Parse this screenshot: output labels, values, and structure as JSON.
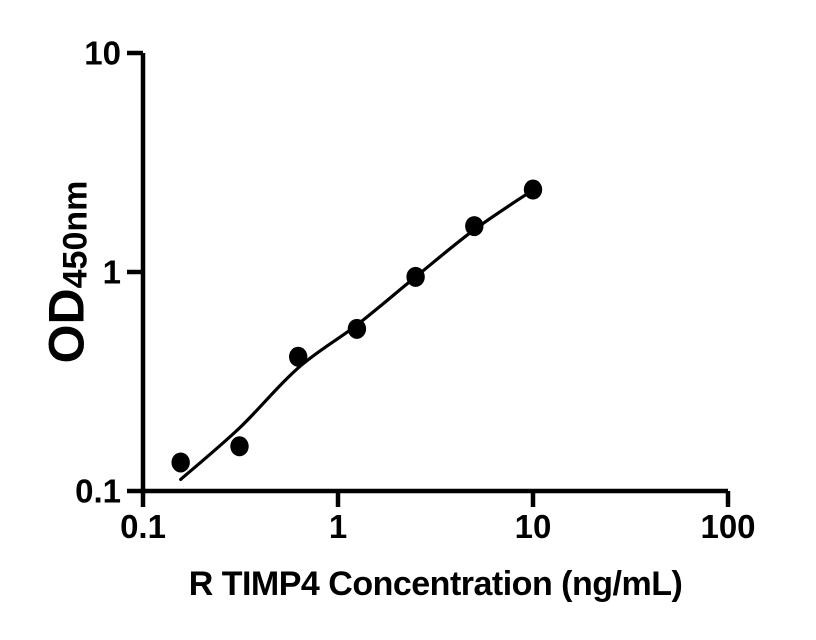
{
  "figure": {
    "background_color": "#ffffff",
    "ink_color": "#000000"
  },
  "chart_data": {
    "type": "scatter",
    "title": "",
    "xlabel": "R TIMP4 Concentration (ng/mL)",
    "ylabel_main": "OD",
    "ylabel_sub": "450nm",
    "x_scale": "log",
    "y_scale": "log",
    "xlim": [
      0.1,
      100
    ],
    "ylim": [
      0.1,
      10
    ],
    "x_ticks": [
      0.1,
      1,
      10,
      100
    ],
    "x_tick_labels": [
      "0.1",
      "1",
      "10",
      "100"
    ],
    "y_ticks": [
      0.1,
      1,
      10
    ],
    "y_tick_labels": [
      "0.1",
      "1",
      "10"
    ],
    "grid": false,
    "legend": "none",
    "series": [
      {
        "name": "standard-points",
        "kind": "scatter",
        "marker": "filled-circle",
        "color": "#000000",
        "x": [
          0.156,
          0.3125,
          0.625,
          1.25,
          2.5,
          5,
          10
        ],
        "y": [
          0.135,
          0.16,
          0.41,
          0.55,
          0.95,
          1.62,
          2.38
        ]
      },
      {
        "name": "fit-curve",
        "kind": "line",
        "color": "#000000",
        "x": [
          0.156,
          0.3125,
          0.625,
          1.25,
          2.5,
          5,
          10
        ],
        "y": [
          0.113,
          0.194,
          0.365,
          0.573,
          0.95,
          1.56,
          2.37
        ]
      }
    ]
  }
}
